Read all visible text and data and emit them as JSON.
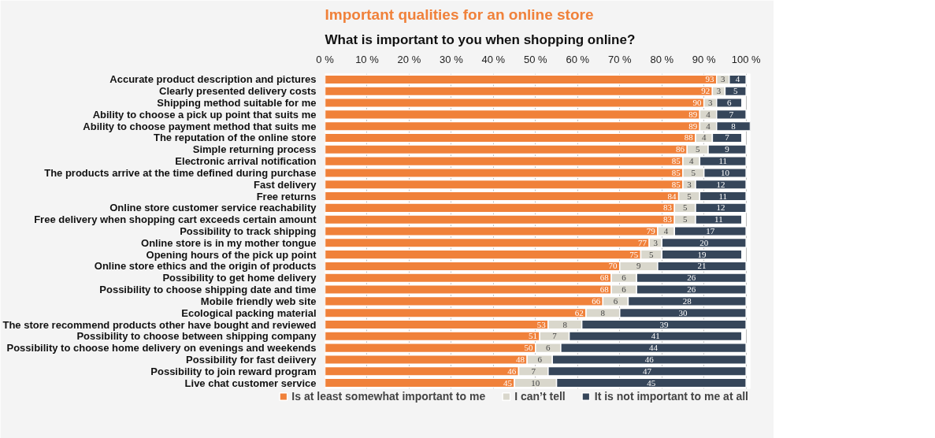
{
  "chart_data": {
    "type": "bar",
    "orientation": "horizontal",
    "stacked": true,
    "title": "Important qualities for an online store",
    "subtitle": "What is important to you when shopping online?",
    "categories": [
      "Accurate product description and pictures",
      "Clearly presented delivery costs",
      "Shipping method suitable for me",
      "Ability to choose a pick up point that suits me",
      "Ability to choose payment method that suits me",
      "The reputation of the online store",
      "Simple returning process",
      "Electronic arrival notification",
      "The products arrive at the time defined during purchase",
      "Fast delivery",
      "Free returns",
      "Online store customer service reachability",
      "Free delivery when shopping cart exceeds certain amount",
      "Possibility to track shipping",
      "Online store is in my mother tongue",
      "Opening hours of the pick up point",
      "Online store ethics and the origin of products",
      "Possibility to get home delivery",
      "Possibility to choose shipping date and time",
      "Mobile friendly web site",
      "Ecological packing material",
      "The store recommend products other have bought and reviewed",
      "Possibility to choose between shipping company",
      "Possibility to choose home delivery on evenings and weekends",
      "Possibility for fast deiivery",
      "Possibility to join reward program",
      "Live chat customer service"
    ],
    "series": [
      {
        "name": "Is at least somewhat important to me",
        "color": "#f0813a",
        "values": [
          93,
          92,
          90,
          89,
          89,
          88,
          86,
          85,
          85,
          85,
          84,
          83,
          83,
          79,
          77,
          75,
          70,
          68,
          68,
          66,
          62,
          53,
          51,
          50,
          48,
          46,
          45
        ]
      },
      {
        "name": "I can’t tell",
        "color": "#d9d7cc",
        "values": [
          3,
          3,
          3,
          4,
          4,
          4,
          5,
          4,
          5,
          3,
          5,
          5,
          5,
          4,
          3,
          5,
          9,
          6,
          6,
          6,
          8,
          8,
          7,
          6,
          6,
          7,
          10
        ]
      },
      {
        "name": "It is not important to me at all",
        "color": "#36465a",
        "values": [
          4,
          5,
          6,
          7,
          8,
          7,
          9,
          11,
          10,
          12,
          11,
          12,
          11,
          17,
          20,
          19,
          21,
          26,
          26,
          28,
          30,
          39,
          41,
          44,
          46,
          47,
          45
        ]
      }
    ],
    "xlim": [
      0,
      101
    ],
    "xticks": [
      {
        "value": 0,
        "label": "0 %"
      },
      {
        "value": 10,
        "label": "10 %"
      },
      {
        "value": 20,
        "label": "20 %"
      },
      {
        "value": 30,
        "label": "30 %"
      },
      {
        "value": 40,
        "label": "40 %"
      },
      {
        "value": 50,
        "label": "50 %"
      },
      {
        "value": 60,
        "label": "60 %"
      },
      {
        "value": 70,
        "label": "70 %"
      },
      {
        "value": 80,
        "label": "80 %"
      },
      {
        "value": 90,
        "label": "90 %"
      },
      {
        "value": 100,
        "label": "100 %"
      }
    ],
    "data_labels": true,
    "grid": "x",
    "legend": "bottom"
  }
}
